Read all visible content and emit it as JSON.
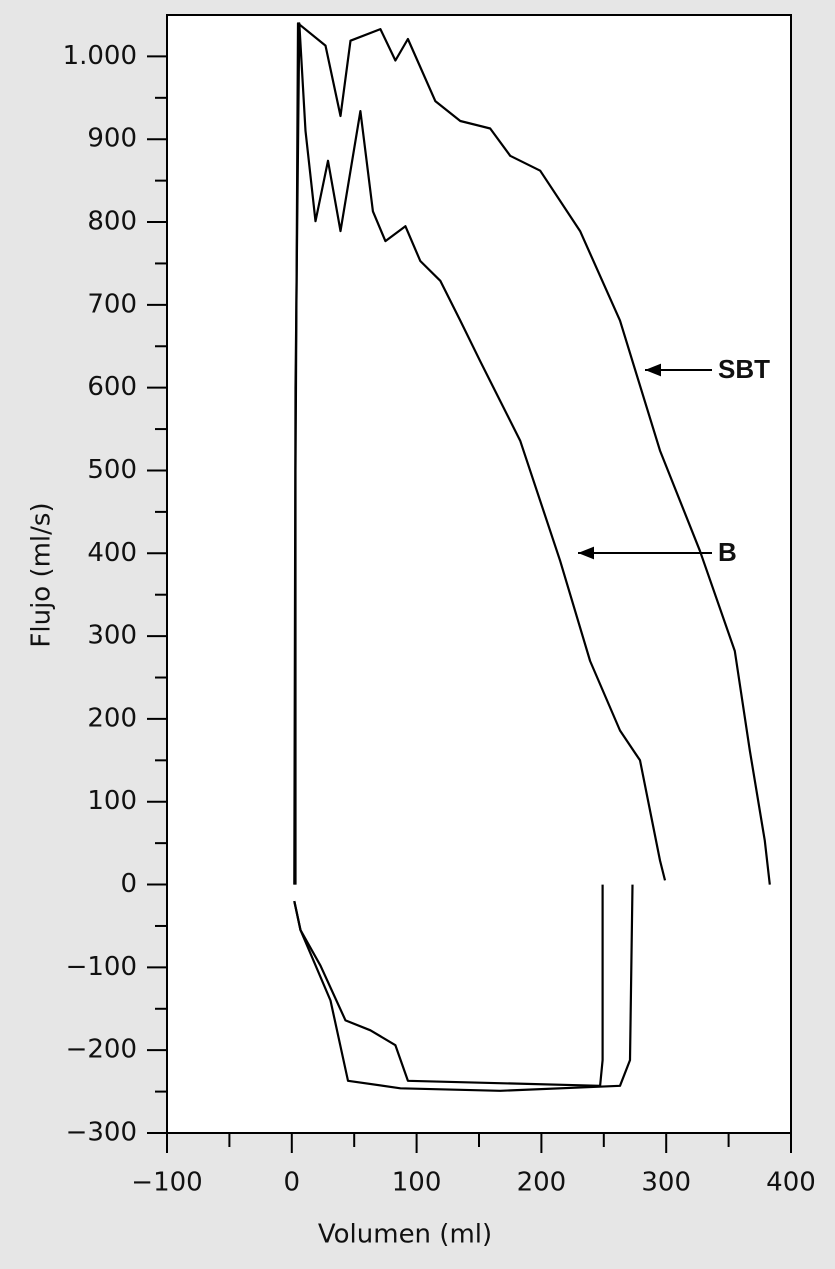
{
  "chart_data": {
    "type": "line",
    "xlabel": "Volumen  (ml)",
    "ylabel": "Flujo (ml/s)",
    "xlim": [
      -100,
      400
    ],
    "xticks": [
      {
        "value": -100,
        "label": "−100"
      },
      0,
      100,
      200,
      300,
      400
    ],
    "xticks_minor": [
      -50,
      50,
      150,
      250,
      350
    ],
    "ylim": [
      -300,
      1050
    ],
    "yticks": [
      {
        "value": -300,
        "label": "−300"
      },
      {
        "value": -200,
        "label": "−200"
      },
      {
        "value": -100,
        "label": "−100"
      },
      0,
      100,
      200,
      300,
      400,
      500,
      600,
      700,
      800,
      900,
      {
        "value": 1000,
        "label": "1.000"
      }
    ],
    "yticks_minor": [
      -250,
      -150,
      -50,
      50,
      150,
      250,
      350,
      450,
      550,
      650,
      750,
      850,
      950
    ],
    "series": [
      {
        "name": "SBT",
        "color": "#000000",
        "x": [
          3,
          3,
          5,
          27,
          39,
          47,
          71,
          83,
          93,
          115,
          135,
          159,
          175,
          199,
          231,
          263,
          295,
          327,
          355,
          367,
          379,
          383,
          null,
          2,
          7,
          31,
          45,
          87,
          167,
          263,
          271,
          273
        ],
        "y": [
          0,
          500,
          1040,
          1013,
          928,
          1019,
          1033,
          995,
          1021,
          946,
          922,
          913,
          880,
          862,
          789,
          681,
          524,
          403,
          282,
          162,
          53,
          0,
          null,
          -20,
          -55,
          -140,
          -237,
          -246,
          -249,
          -243,
          -212,
          0
        ]
      },
      {
        "name": "B",
        "color": "#000000",
        "x": [
          2,
          3,
          6,
          11,
          19,
          29,
          39,
          55,
          65,
          75,
          91,
          103,
          119,
          135,
          151,
          183,
          215,
          239,
          263,
          279,
          295,
          299,
          null,
          2,
          7,
          23,
          43,
          63,
          83,
          93,
          170,
          247,
          249,
          249
        ],
        "y": [
          0,
          600,
          1040,
          910,
          801,
          874,
          789,
          934,
          813,
          777,
          795,
          753,
          729,
          681,
          632,
          536,
          391,
          270,
          186,
          150,
          29,
          5,
          null,
          -20,
          -55,
          -98,
          -164,
          -176,
          -194,
          -237,
          -240,
          -243,
          -212,
          0
        ]
      }
    ]
  }
}
